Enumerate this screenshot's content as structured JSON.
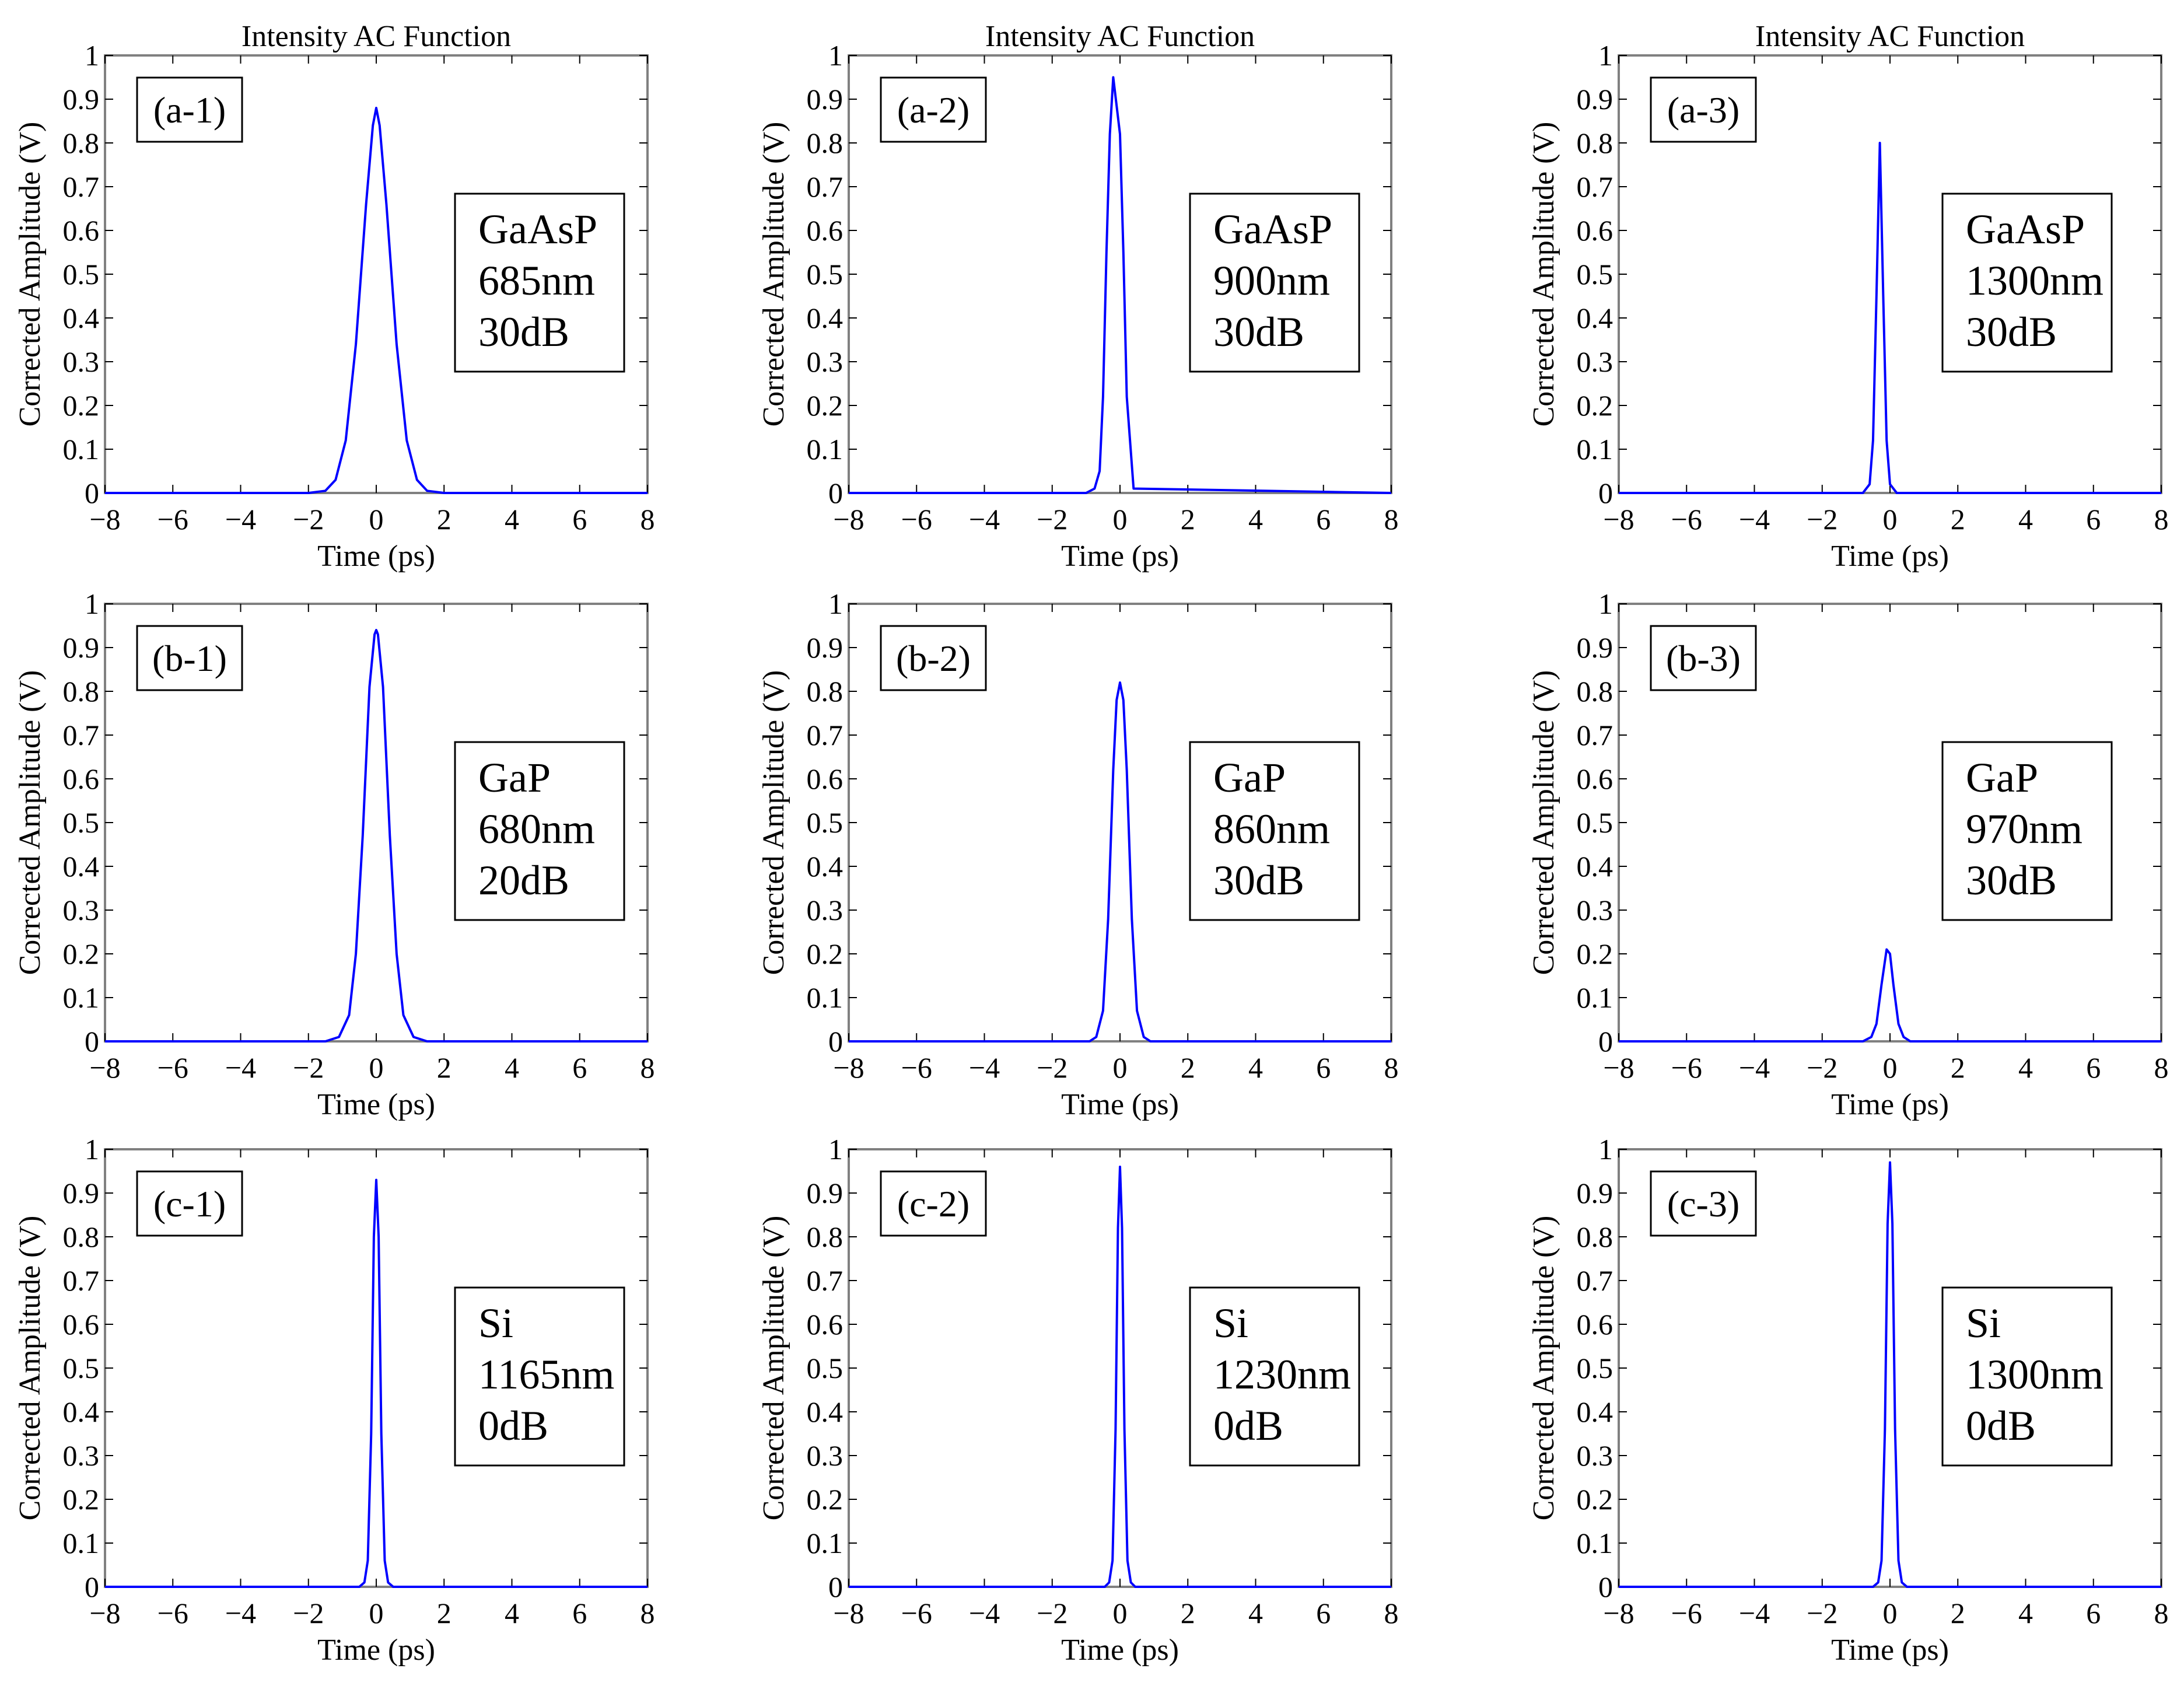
{
  "figure": {
    "trace_color": "#0000ff",
    "frame_color": "#808080",
    "grid_tick_color": "#000000"
  },
  "chart_data": [
    {
      "type": "line",
      "title": "Intensity AC Function",
      "panel_label": "(a-1)",
      "annotation": [
        "GaAsP",
        "685nm",
        "30dB"
      ],
      "xlabel": "Time (ps)",
      "ylabel": "Corrected Amplitude (V)",
      "xlim": [
        -8,
        8
      ],
      "ylim": [
        0,
        1
      ],
      "xticks": [
        -8,
        -6,
        -4,
        -2,
        0,
        2,
        4,
        6,
        8
      ],
      "yticks": [
        0,
        0.1,
        0.2,
        0.3,
        0.4,
        0.5,
        0.6,
        0.7,
        0.8,
        0.9,
        1
      ],
      "grid": false,
      "series": [
        {
          "x": [
            -8,
            -2,
            -1.5,
            -1.2,
            -0.9,
            -0.6,
            -0.3,
            -0.1,
            0,
            0.1,
            0.3,
            0.6,
            0.9,
            1.2,
            1.5,
            2,
            8
          ],
          "y": [
            0,
            0,
            0.005,
            0.03,
            0.12,
            0.34,
            0.66,
            0.84,
            0.88,
            0.84,
            0.66,
            0.34,
            0.12,
            0.03,
            0.005,
            0,
            0
          ]
        }
      ]
    },
    {
      "type": "line",
      "title": "Intensity AC Function",
      "panel_label": "(a-2)",
      "annotation": [
        "GaAsP",
        "900nm",
        "30dB"
      ],
      "xlabel": "Time (ps)",
      "ylabel": "Corrected Amplitude (V)",
      "xlim": [
        -8,
        8
      ],
      "ylim": [
        0,
        1
      ],
      "xticks": [
        -8,
        -6,
        -4,
        -2,
        0,
        2,
        4,
        6,
        8
      ],
      "yticks": [
        0,
        0.1,
        0.2,
        0.3,
        0.4,
        0.5,
        0.6,
        0.7,
        0.8,
        0.9,
        1
      ],
      "grid": false,
      "series": [
        {
          "x": [
            -8,
            -1.0,
            -0.75,
            -0.6,
            -0.5,
            -0.4,
            -0.3,
            -0.2,
            0.0,
            0.1,
            0.2,
            0.4,
            8
          ],
          "y": [
            0,
            0,
            0.01,
            0.05,
            0.22,
            0.55,
            0.82,
            0.95,
            0.82,
            0.55,
            0.22,
            0.01,
            0
          ]
        }
      ]
    },
    {
      "type": "line",
      "title": "Intensity AC Function",
      "panel_label": "(a-3)",
      "annotation": [
        "GaAsP",
        "1300nm",
        "30dB"
      ],
      "xlabel": "Time (ps)",
      "ylabel": "Corrected Amplitude (V)",
      "xlim": [
        -8,
        8
      ],
      "ylim": [
        0,
        1
      ],
      "xticks": [
        -8,
        -6,
        -4,
        -2,
        0,
        2,
        4,
        6,
        8
      ],
      "yticks": [
        0,
        0.1,
        0.2,
        0.3,
        0.4,
        0.5,
        0.6,
        0.7,
        0.8,
        0.9,
        1
      ],
      "grid": false,
      "series": [
        {
          "x": [
            -8,
            -0.8,
            -0.6,
            -0.5,
            -0.4,
            -0.3,
            -0.2,
            -0.1,
            0.0,
            0.2,
            8
          ],
          "y": [
            0,
            0,
            0.02,
            0.12,
            0.45,
            0.8,
            0.45,
            0.12,
            0.02,
            0,
            0
          ]
        }
      ]
    },
    {
      "type": "line",
      "panel_label": "(b-1)",
      "annotation": [
        "GaP",
        "680nm",
        "20dB"
      ],
      "xlabel": "Time (ps)",
      "ylabel": "Corrected Amplitude (V)",
      "xlim": [
        -8,
        8
      ],
      "ylim": [
        0,
        1
      ],
      "xticks": [
        -8,
        -6,
        -4,
        -2,
        0,
        2,
        4,
        6,
        8
      ],
      "yticks": [
        0,
        0.1,
        0.2,
        0.3,
        0.4,
        0.5,
        0.6,
        0.7,
        0.8,
        0.9,
        1
      ],
      "grid": false,
      "series": [
        {
          "x": [
            -8,
            -1.5,
            -1.1,
            -0.8,
            -0.6,
            -0.4,
            -0.2,
            -0.05,
            0,
            0.05,
            0.2,
            0.4,
            0.6,
            0.8,
            1.1,
            1.5,
            8
          ],
          "y": [
            0,
            0,
            0.01,
            0.06,
            0.2,
            0.47,
            0.81,
            0.93,
            0.94,
            0.93,
            0.81,
            0.47,
            0.2,
            0.06,
            0.01,
            0,
            0
          ]
        }
      ]
    },
    {
      "type": "line",
      "panel_label": "(b-2)",
      "annotation": [
        "GaP",
        "860nm",
        "30dB"
      ],
      "xlabel": "Time (ps)",
      "ylabel": "Corrected Amplitude (V)",
      "xlim": [
        -8,
        8
      ],
      "ylim": [
        0,
        1
      ],
      "xticks": [
        -8,
        -6,
        -4,
        -2,
        0,
        2,
        4,
        6,
        8
      ],
      "yticks": [
        0,
        0.1,
        0.2,
        0.3,
        0.4,
        0.5,
        0.6,
        0.7,
        0.8,
        0.9,
        1
      ],
      "grid": false,
      "series": [
        {
          "x": [
            -8,
            -0.9,
            -0.7,
            -0.5,
            -0.35,
            -0.2,
            -0.1,
            0,
            0.1,
            0.2,
            0.35,
            0.5,
            0.7,
            0.9,
            8
          ],
          "y": [
            0,
            0,
            0.01,
            0.07,
            0.28,
            0.62,
            0.78,
            0.82,
            0.78,
            0.62,
            0.28,
            0.07,
            0.01,
            0,
            0
          ]
        }
      ]
    },
    {
      "type": "line",
      "panel_label": "(b-3)",
      "annotation": [
        "GaP",
        "970nm",
        "30dB"
      ],
      "xlabel": "Time (ps)",
      "ylabel": "Corrected Amplitude (V)",
      "xlim": [
        -8,
        8
      ],
      "ylim": [
        0,
        1
      ],
      "xticks": [
        -8,
        -6,
        -4,
        -2,
        0,
        2,
        4,
        6,
        8
      ],
      "yticks": [
        0,
        0.1,
        0.2,
        0.3,
        0.4,
        0.5,
        0.6,
        0.7,
        0.8,
        0.9,
        1
      ],
      "grid": false,
      "series": [
        {
          "x": [
            -8,
            -0.8,
            -0.55,
            -0.4,
            -0.25,
            -0.1,
            0,
            0.1,
            0.25,
            0.4,
            0.6,
            8
          ],
          "y": [
            0,
            0,
            0.01,
            0.04,
            0.13,
            0.21,
            0.2,
            0.13,
            0.04,
            0.01,
            0,
            0
          ]
        }
      ]
    },
    {
      "type": "line",
      "panel_label": "(c-1)",
      "annotation": [
        "Si",
        "1165nm",
        "0dB"
      ],
      "xlabel": "Time (ps)",
      "ylabel": "Corrected Amplitude (V)",
      "xlim": [
        -8,
        8
      ],
      "ylim": [
        0,
        1
      ],
      "xticks": [
        -8,
        -6,
        -4,
        -2,
        0,
        2,
        4,
        6,
        8
      ],
      "yticks": [
        0,
        0.1,
        0.2,
        0.3,
        0.4,
        0.5,
        0.6,
        0.7,
        0.8,
        0.9,
        1
      ],
      "grid": false,
      "series": [
        {
          "x": [
            -8,
            -0.5,
            -0.35,
            -0.25,
            -0.15,
            -0.07,
            0,
            0.07,
            0.15,
            0.25,
            0.35,
            0.5,
            8
          ],
          "y": [
            0,
            0,
            0.01,
            0.06,
            0.35,
            0.8,
            0.93,
            0.8,
            0.35,
            0.06,
            0.01,
            0,
            0
          ]
        }
      ]
    },
    {
      "type": "line",
      "panel_label": "(c-2)",
      "annotation": [
        "Si",
        "1230nm",
        "0dB"
      ],
      "xlabel": "Time (ps)",
      "ylabel": "Corrected Amplitude (V)",
      "xlim": [
        -8,
        8
      ],
      "ylim": [
        0,
        1
      ],
      "xticks": [
        -8,
        -6,
        -4,
        -2,
        0,
        2,
        4,
        6,
        8
      ],
      "yticks": [
        0,
        0.1,
        0.2,
        0.3,
        0.4,
        0.5,
        0.6,
        0.7,
        0.8,
        0.9,
        1
      ],
      "grid": false,
      "series": [
        {
          "x": [
            -8,
            -0.45,
            -0.32,
            -0.22,
            -0.13,
            -0.06,
            0,
            0.06,
            0.13,
            0.22,
            0.32,
            0.45,
            8
          ],
          "y": [
            0,
            0,
            0.01,
            0.06,
            0.36,
            0.82,
            0.96,
            0.82,
            0.36,
            0.06,
            0.01,
            0,
            0
          ]
        }
      ]
    },
    {
      "type": "line",
      "panel_label": "(c-3)",
      "annotation": [
        "Si",
        "1300nm",
        "0dB"
      ],
      "xlabel": "Time (ps)",
      "ylabel": "Corrected Amplitude (V)",
      "xlim": [
        -8,
        8
      ],
      "ylim": [
        0,
        1
      ],
      "xticks": [
        -8,
        -6,
        -4,
        -2,
        0,
        2,
        4,
        6,
        8
      ],
      "yticks": [
        0,
        0.1,
        0.2,
        0.3,
        0.4,
        0.5,
        0.6,
        0.7,
        0.8,
        0.9,
        1
      ],
      "grid": false,
      "series": [
        {
          "x": [
            -8,
            -0.5,
            -0.35,
            -0.25,
            -0.15,
            -0.07,
            0,
            0.07,
            0.15,
            0.25,
            0.35,
            0.5,
            8
          ],
          "y": [
            0,
            0,
            0.01,
            0.06,
            0.36,
            0.83,
            0.97,
            0.83,
            0.36,
            0.06,
            0.01,
            0,
            0
          ]
        }
      ]
    }
  ]
}
